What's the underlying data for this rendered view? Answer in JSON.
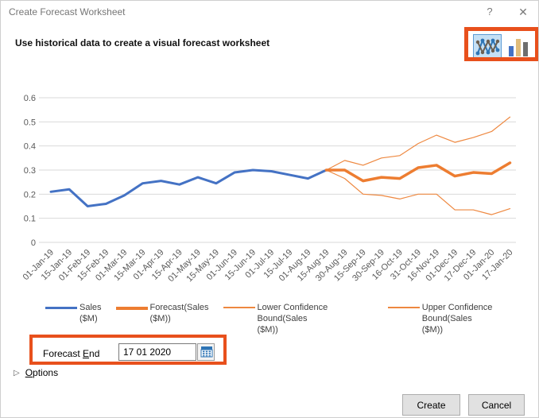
{
  "window": {
    "title": "Create Forecast Worksheet",
    "help": "?",
    "close": "✕"
  },
  "subtitle": "Use historical data to create a visual forecast worksheet",
  "chart_type_picker": {
    "line_option": "line-chart",
    "bar_option": "bar-chart",
    "selected": "line-chart"
  },
  "colors": {
    "annotation_highlight": "#E8501C",
    "sales": "#4472C4",
    "forecast": "#ED7D31",
    "confidence_bounds": "#EE8840",
    "gridline": "#D9D9D9",
    "axis_text": "#595959",
    "selected_icon_bg": "#C5E0F5",
    "selected_icon_border": "#5B9BD5"
  },
  "chart_data": {
    "type": "line",
    "title": "",
    "xlabel": "",
    "ylabel": "",
    "ylim": [
      0,
      0.6
    ],
    "yticks": [
      0,
      0.1,
      0.2,
      0.3,
      0.4,
      0.5,
      0.6
    ],
    "ytick_labels": [
      "0",
      "0.1",
      "0.2",
      "0.3",
      "0.4",
      "0.5",
      "0.6"
    ],
    "grid": true,
    "legend_position": "bottom",
    "categories": [
      "01-Jan-19",
      "15-Jan-19",
      "01-Feb-19",
      "15-Feb-19",
      "01-Mar-19",
      "15-Mar-19",
      "01-Apr-19",
      "15-Apr-19",
      "01-May-19",
      "15-May-19",
      "01-Jun-19",
      "15-Jun-19",
      "01-Jul-19",
      "15-Jul-19",
      "01-Aug-19",
      "15-Aug-19",
      "30-Aug-19",
      "15-Sep-19",
      "30-Sep-19",
      "16-Oct-19",
      "31-Oct-19",
      "16-Nov-19",
      "01-Dec-19",
      "17-Dec-19",
      "01-Jan-20",
      "17-Jan-20"
    ],
    "series": [
      {
        "name": "Sales ($M)",
        "legend": [
          "Sales",
          "($M)"
        ],
        "color": "#4472C4",
        "width": 3,
        "values": [
          0.21,
          0.22,
          0.15,
          0.16,
          0.195,
          0.245,
          0.255,
          0.24,
          0.27,
          0.245,
          0.29,
          0.3,
          0.295,
          0.28,
          0.265,
          0.3,
          null,
          null,
          null,
          null,
          null,
          null,
          null,
          null,
          null,
          null
        ]
      },
      {
        "name": "Forecast(Sales ($M))",
        "legend": [
          "Forecast(Sales",
          "($M))"
        ],
        "color": "#ED7D31",
        "width": 3.5,
        "values": [
          null,
          null,
          null,
          null,
          null,
          null,
          null,
          null,
          null,
          null,
          null,
          null,
          null,
          null,
          null,
          0.3,
          0.3,
          0.255,
          0.27,
          0.265,
          0.31,
          0.32,
          0.275,
          0.29,
          0.285,
          0.33
        ]
      },
      {
        "name": "Lower Confidence Bound(Sales ($M))",
        "legend": [
          "Lower Confidence Bound(Sales",
          "($M))"
        ],
        "color": "#EE8840",
        "width": 1.2,
        "values": [
          null,
          null,
          null,
          null,
          null,
          null,
          null,
          null,
          null,
          null,
          null,
          null,
          null,
          null,
          null,
          0.3,
          0.265,
          0.2,
          0.195,
          0.18,
          0.2,
          0.2,
          0.135,
          0.135,
          0.115,
          0.14
        ]
      },
      {
        "name": "Upper Confidence Bound(Sales ($M))",
        "legend": [
          "Upper Confidence Bound(Sales",
          "($M))"
        ],
        "color": "#EE8840",
        "width": 1.2,
        "values": [
          null,
          null,
          null,
          null,
          null,
          null,
          null,
          null,
          null,
          null,
          null,
          null,
          null,
          null,
          null,
          0.3,
          0.34,
          0.32,
          0.35,
          0.36,
          0.41,
          0.445,
          0.415,
          0.435,
          0.46,
          0.52
        ]
      }
    ]
  },
  "forecast_end": {
    "label_pre": "Forecast ",
    "label_accel": "E",
    "label_post": "nd",
    "value": "17 01 2020"
  },
  "options": {
    "triangle": "▷",
    "accel": "O",
    "rest": "ptions"
  },
  "buttons": {
    "create": "Create",
    "cancel": "Cancel"
  }
}
